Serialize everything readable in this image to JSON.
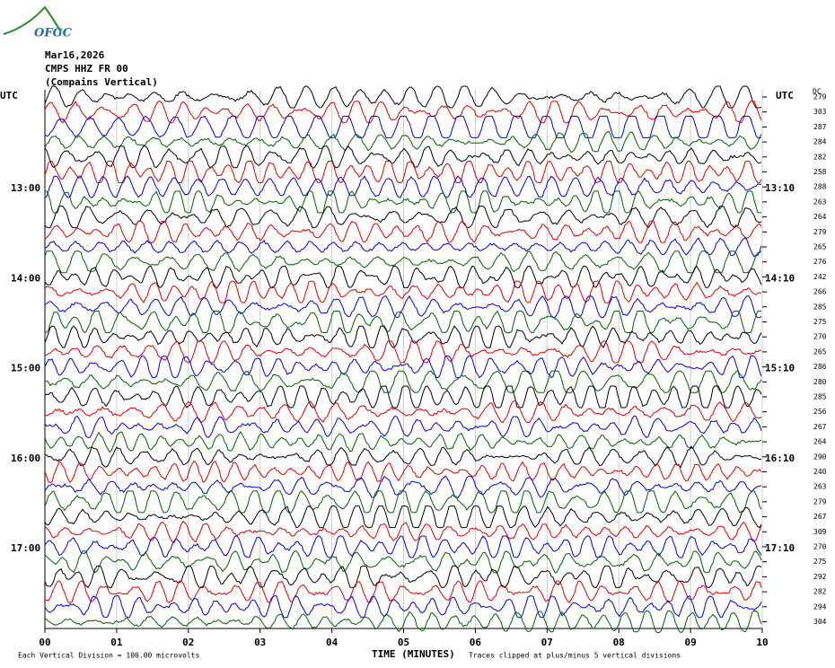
{
  "logo": "OFGC",
  "header": {
    "date": "Mar16,2026",
    "station": "CMPS HHZ FR 00",
    "component": "(Compains Vertical)"
  },
  "left_axis_label": "UTC",
  "right_axis_label": "UTC",
  "dc_label": "DC",
  "trace_colors": [
    "#000000",
    "#e00000",
    "#0000e0",
    "#006000"
  ],
  "rows": [
    {
      "dc": "279",
      "left": null,
      "right": null
    },
    {
      "dc": "303",
      "left": null,
      "right": null
    },
    {
      "dc": "287",
      "left": null,
      "right": null
    },
    {
      "dc": "284",
      "left": null,
      "right": null
    },
    {
      "dc": "282",
      "left": null,
      "right": null
    },
    {
      "dc": "258",
      "left": null,
      "right": null
    },
    {
      "dc": "288",
      "left": "13:00",
      "right": "13:10"
    },
    {
      "dc": "263",
      "left": null,
      "right": null
    },
    {
      "dc": "264",
      "left": null,
      "right": null
    },
    {
      "dc": "279",
      "left": null,
      "right": null
    },
    {
      "dc": "265",
      "left": null,
      "right": null
    },
    {
      "dc": "276",
      "left": null,
      "right": null
    },
    {
      "dc": "242",
      "left": "14:00",
      "right": "14:10"
    },
    {
      "dc": "266",
      "left": null,
      "right": null
    },
    {
      "dc": "285",
      "left": null,
      "right": null
    },
    {
      "dc": "275",
      "left": null,
      "right": null
    },
    {
      "dc": "270",
      "left": null,
      "right": null
    },
    {
      "dc": "265",
      "left": null,
      "right": null
    },
    {
      "dc": "286",
      "left": "15:00",
      "right": "15:10"
    },
    {
      "dc": "280",
      "left": null,
      "right": null
    },
    {
      "dc": "285",
      "left": null,
      "right": null
    },
    {
      "dc": "256",
      "left": null,
      "right": null
    },
    {
      "dc": "267",
      "left": null,
      "right": null
    },
    {
      "dc": "264",
      "left": null,
      "right": null
    },
    {
      "dc": "290",
      "left": "16:00",
      "right": "16:10"
    },
    {
      "dc": "240",
      "left": null,
      "right": null
    },
    {
      "dc": "263",
      "left": null,
      "right": null
    },
    {
      "dc": "279",
      "left": null,
      "right": null
    },
    {
      "dc": "267",
      "left": null,
      "right": null
    },
    {
      "dc": "309",
      "left": null,
      "right": null
    },
    {
      "dc": "270",
      "left": "17:00",
      "right": "17:10"
    },
    {
      "dc": "275",
      "left": null,
      "right": null
    },
    {
      "dc": "292",
      "left": null,
      "right": null
    },
    {
      "dc": "282",
      "left": null,
      "right": null
    },
    {
      "dc": "294",
      "left": null,
      "right": null
    },
    {
      "dc": "304",
      "left": null,
      "right": null
    }
  ],
  "x_axis": {
    "ticks": [
      "00",
      "01",
      "02",
      "03",
      "04",
      "05",
      "06",
      "07",
      "08",
      "09",
      "10"
    ],
    "label": "TIME (MINUTES)"
  },
  "footer": {
    "scale": "Each Vertical Division =  100.00 microvolts",
    "clip": "Traces clipped at plus/minus 5 vertical divisions"
  }
}
